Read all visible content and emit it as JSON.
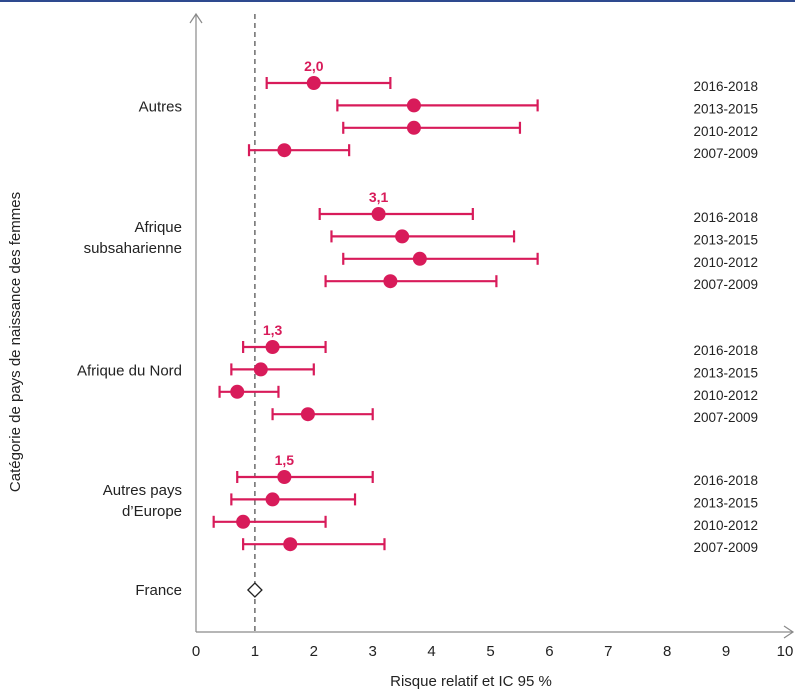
{
  "colors": {
    "accent": "#d81b5a",
    "top_rule": "#2e4a8f",
    "axis": "#8a8a8a",
    "text": "#222222"
  },
  "chart_data": {
    "type": "forest",
    "xlabel": "Risque relatif et IC 95 %",
    "ylabel": "Catégorie de pays de naissance des femmes",
    "xlim": [
      0,
      10
    ],
    "xticks": [
      "0",
      "1",
      "2",
      "3",
      "4",
      "5",
      "6",
      "7",
      "8",
      "9",
      "10"
    ],
    "reference_line": 1,
    "periods": [
      "2016-2018",
      "2013-2015",
      "2010-2012",
      "2007-2009"
    ],
    "groups": [
      {
        "label": [
          "Autres"
        ],
        "highlight": "2,0",
        "series": [
          {
            "period": "2016-2018",
            "value": 2.0,
            "low": 1.2,
            "high": 3.3
          },
          {
            "period": "2013-2015",
            "value": 3.7,
            "low": 2.4,
            "high": 5.8
          },
          {
            "period": "2010-2012",
            "value": 3.7,
            "low": 2.5,
            "high": 5.5
          },
          {
            "period": "2007-2009",
            "value": 1.5,
            "low": 0.9,
            "high": 2.6
          }
        ]
      },
      {
        "label": [
          "Afrique",
          "subsaharienne"
        ],
        "highlight": "3,1",
        "series": [
          {
            "period": "2016-2018",
            "value": 3.1,
            "low": 2.1,
            "high": 4.7
          },
          {
            "period": "2013-2015",
            "value": 3.5,
            "low": 2.3,
            "high": 5.4
          },
          {
            "period": "2010-2012",
            "value": 3.8,
            "low": 2.5,
            "high": 5.8
          },
          {
            "period": "2007-2009",
            "value": 3.3,
            "low": 2.2,
            "high": 5.1
          }
        ]
      },
      {
        "label": [
          "Afrique du Nord"
        ],
        "highlight": "1,3",
        "series": [
          {
            "period": "2016-2018",
            "value": 1.3,
            "low": 0.8,
            "high": 2.2
          },
          {
            "period": "2013-2015",
            "value": 1.1,
            "low": 0.6,
            "high": 2.0
          },
          {
            "period": "2010-2012",
            "value": 0.7,
            "low": 0.4,
            "high": 1.4
          },
          {
            "period": "2007-2009",
            "value": 1.9,
            "low": 1.3,
            "high": 3.0
          }
        ]
      },
      {
        "label": [
          "Autres pays",
          "d’Europe"
        ],
        "highlight": "1,5",
        "series": [
          {
            "period": "2016-2018",
            "value": 1.5,
            "low": 0.7,
            "high": 3.0
          },
          {
            "period": "2013-2015",
            "value": 1.3,
            "low": 0.6,
            "high": 2.7
          },
          {
            "period": "2010-2012",
            "value": 0.8,
            "low": 0.3,
            "high": 2.2
          },
          {
            "period": "2007-2009",
            "value": 1.6,
            "low": 0.8,
            "high": 3.2
          }
        ]
      }
    ],
    "reference": {
      "label": "France",
      "value": 1
    }
  }
}
